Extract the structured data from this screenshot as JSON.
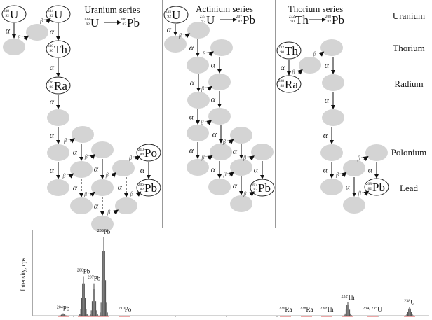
{
  "symbols": {
    "alpha": "α",
    "beta": "β⁻",
    "arrow": "⟶"
  },
  "series": [
    {
      "title": "Uranium series",
      "from": {
        "mass": "238",
        "z": "92",
        "symbol": "U"
      },
      "to": {
        "mass": "206",
        "z": "82",
        "symbol": "Pb"
      }
    },
    {
      "title": "Actinium series",
      "from": {
        "mass": "235",
        "z": "92",
        "symbol": "U"
      },
      "to": {
        "mass": "207",
        "z": "82",
        "symbol": "Pb"
      }
    },
    {
      "title": "Thorium series",
      "from": {
        "mass": "232",
        "z": "90",
        "symbol": "Th"
      },
      "to": {
        "mass": "208",
        "z": "82",
        "symbol": "Pb"
      }
    }
  ],
  "row_labels": [
    "Uranium",
    "Thorium",
    "Radium",
    "Polonium",
    "Lead"
  ],
  "nuclides": {
    "u238": {
      "mass": "238",
      "z": "92",
      "symbol": "U"
    },
    "u234": {
      "mass": "234",
      "z": "92",
      "symbol": "U"
    },
    "th230": {
      "mass": "230",
      "z": "90",
      "symbol": "Th"
    },
    "ra226": {
      "mass": "226",
      "z": "88",
      "symbol": "Ra"
    },
    "po210": {
      "mass": "210",
      "z": "84",
      "symbol": "Po"
    },
    "pb206": {
      "mass": "206",
      "z": "82",
      "symbol": "Pb"
    },
    "u235": {
      "mass": "235",
      "z": "92",
      "symbol": "U"
    },
    "pb207": {
      "mass": "207",
      "z": "82",
      "symbol": "Pb"
    },
    "th232": {
      "mass": "232",
      "z": "90",
      "symbol": "Th"
    },
    "ra228": {
      "mass": "228",
      "z": "88",
      "symbol": "Ra"
    },
    "pb208": {
      "mass": "208",
      "z": "82",
      "symbol": "Pb"
    }
  },
  "chart_data": {
    "type": "bar",
    "ylabel": "Intensity, cps",
    "xlabel": "",
    "ylim": [
      0,
      100
    ],
    "peaks": [
      {
        "mass": "204",
        "symbol": "Pb",
        "value": 3
      },
      {
        "mass": "206",
        "symbol": "Pb",
        "value": 50
      },
      {
        "mass": "207",
        "symbol": "Pb",
        "value": 41
      },
      {
        "mass": "208",
        "symbol": "Pb",
        "value": 100
      },
      {
        "mass": "210",
        "symbol": "Po",
        "value": 0
      },
      {
        "mass": "226",
        "symbol": "Ra",
        "value": 0
      },
      {
        "mass": "228",
        "symbol": "Ra",
        "value": 0
      },
      {
        "mass": "230",
        "symbol": "Th",
        "value": 0
      },
      {
        "mass": "232",
        "symbol": "Th",
        "value": 17
      },
      {
        "mass": "234, 235",
        "symbol": "U",
        "value": 0
      },
      {
        "mass": "238",
        "symbol": "U",
        "value": 11
      }
    ],
    "colors": {
      "bars": "#444444",
      "baseline_marks": "#e88a8a"
    }
  }
}
